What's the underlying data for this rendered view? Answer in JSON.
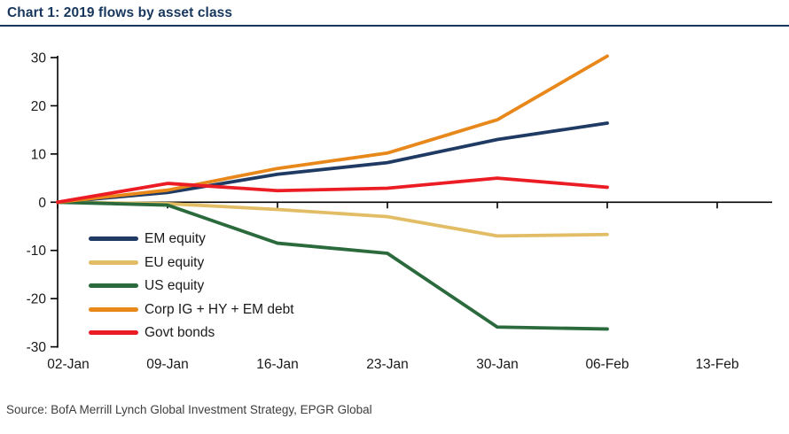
{
  "page": {
    "title": "Chart 1: 2019 flows by asset class",
    "source": "Source: BofA Merrill Lynch Global Investment Strategy, EPGR Global"
  },
  "colors": {
    "title_navy": "#17365d",
    "axis": "#000000",
    "tick_label": "#1a1a1a"
  },
  "chart_data": {
    "type": "line",
    "title": "Chart 1: 2019 flows by asset class",
    "xlabel": "",
    "ylabel": "",
    "x_tick_labels": [
      "02-Jan",
      "09-Jan",
      "16-Jan",
      "23-Jan",
      "30-Jan",
      "06-Feb",
      "13-Feb"
    ],
    "y_ticks": [
      30,
      20,
      10,
      0,
      -10,
      -20,
      -30
    ],
    "ylim": [
      -30,
      30
    ],
    "grid": false,
    "legend_position": "inside-left",
    "categories": [
      "02-Jan",
      "09-Jan",
      "16-Jan",
      "23-Jan",
      "30-Jan",
      "06-Feb"
    ],
    "series": [
      {
        "name": "EM equity",
        "color": "#1f3a63",
        "values": [
          0,
          2.0,
          5.8,
          8.2,
          13.0,
          16.4
        ]
      },
      {
        "name": "EU equity",
        "color": "#e2bd66",
        "values": [
          0,
          -0.3,
          -1.5,
          -3.0,
          -7.0,
          -6.7
        ]
      },
      {
        "name": "US equity",
        "color": "#2b6a3c",
        "values": [
          0,
          -0.6,
          -8.5,
          -10.6,
          -25.9,
          -26.3
        ]
      },
      {
        "name": "Corp IG + HY + EM debt",
        "color": "#e8871a",
        "values": [
          0,
          2.5,
          7.0,
          10.2,
          17.1,
          30.3
        ]
      },
      {
        "name": "Govt bonds",
        "color": "#ec1c24",
        "values": [
          0,
          3.9,
          2.4,
          2.9,
          5.0,
          3.1
        ]
      }
    ]
  }
}
